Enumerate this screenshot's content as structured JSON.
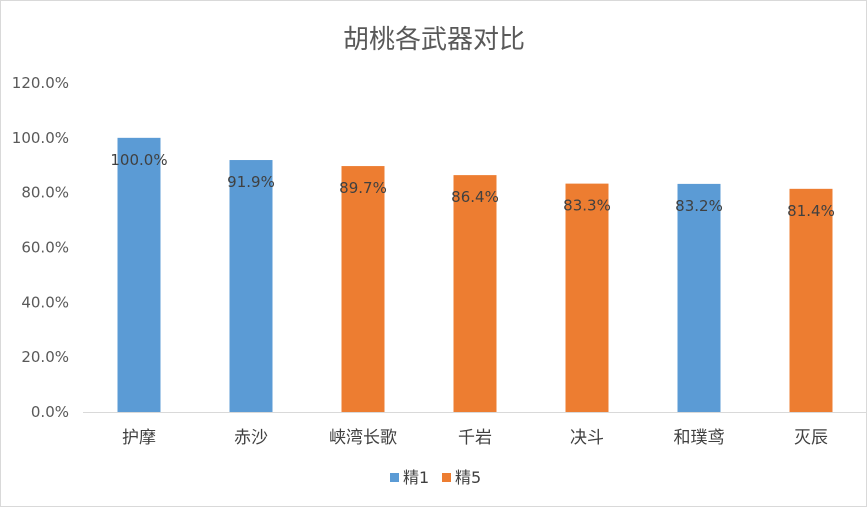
{
  "chart_data": {
    "type": "bar",
    "title": "胡桃各武器对比",
    "categories": [
      "护摩",
      "赤沙",
      "峡湾长歌",
      "千岩",
      "决斗",
      "和璞鸢",
      "灭辰"
    ],
    "values": [
      100.0,
      91.9,
      89.7,
      86.4,
      83.3,
      83.2,
      81.4
    ],
    "data_labels": [
      "100.0%",
      "91.9%",
      "89.7%",
      "86.4%",
      "83.3%",
      "83.2%",
      "81.4%"
    ],
    "groups": [
      "精1",
      "精1",
      "精5",
      "精5",
      "精5",
      "精1",
      "精5"
    ],
    "series": [
      {
        "name": "精1",
        "color": "#5b9bd5"
      },
      {
        "name": "精5",
        "color": "#ed7d31"
      }
    ],
    "ylim": [
      0,
      120
    ],
    "yticks": [
      "0.0%",
      "20.0%",
      "40.0%",
      "60.0%",
      "80.0%",
      "100.0%",
      "120.0%"
    ],
    "ytick_values": [
      0,
      20,
      40,
      60,
      80,
      100,
      120
    ],
    "grid": false,
    "legend_position": "bottom"
  }
}
